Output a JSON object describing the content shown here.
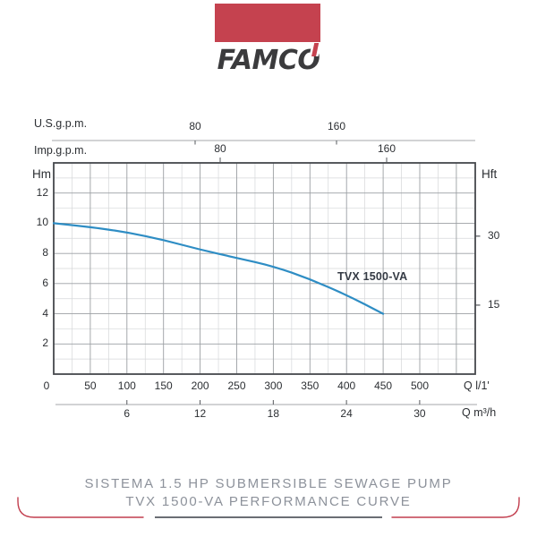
{
  "colors": {
    "accent_red": "#c5424f",
    "curve_blue": "#2e8dc4",
    "frame": "#45484d",
    "grid_major": "#9b9fa3",
    "grid_minor": "#d5d7d9",
    "axis_line": "#a4a7ab",
    "tick_mark": "#55585c",
    "text_dark": "#2c2f33",
    "footer_text": "#8d929b",
    "footer_line_dark": "#3a3f46",
    "footer_line_red": "#c23e4e"
  },
  "logo": {
    "brand": "FAMCO"
  },
  "chart_data": {
    "type": "line",
    "title": "TVX 1500-VA performance curve",
    "curve_label": "TVX 1500-VA",
    "grid": "major+minor",
    "x_axes": {
      "us_gpm": {
        "label": "U.S.g.p.m.",
        "ticks": [
          80,
          160
        ]
      },
      "imp_gpm": {
        "label": "Imp.g.p.m.",
        "ticks": [
          80,
          160
        ]
      },
      "l_min": {
        "label": "Q l/1'",
        "ticks": [
          0,
          50,
          100,
          150,
          200,
          250,
          300,
          350,
          400,
          450,
          500
        ]
      },
      "m3_h": {
        "label": "Q m³/h",
        "ticks": [
          6,
          12,
          18,
          24,
          30
        ]
      }
    },
    "y_axes": {
      "hm": {
        "label": "Hm",
        "ticks": [
          2,
          4,
          6,
          8,
          10,
          12
        ],
        "range": [
          0,
          14
        ]
      },
      "hft": {
        "label": "Hft",
        "ticks": [
          15,
          30
        ]
      }
    },
    "x_range_l_min": [
      0,
      575
    ],
    "x_grid_step_l_min": 25,
    "y_grid_step_m": 1,
    "series": [
      {
        "name": "TVX 1500-VA",
        "x_l_min": [
          0,
          50,
          100,
          150,
          200,
          250,
          300,
          350,
          400,
          450
        ],
        "head_m": [
          10,
          9.75,
          9.4,
          8.9,
          8.25,
          7.7,
          7.15,
          6.3,
          5.25,
          4.0
        ]
      }
    ]
  },
  "footer": {
    "line1": "SISTEMA 1.5 HP SUBMERSIBLE SEWAGE PUMP",
    "line2": "TVX 1500-VA PERFORMANCE CURVE"
  }
}
